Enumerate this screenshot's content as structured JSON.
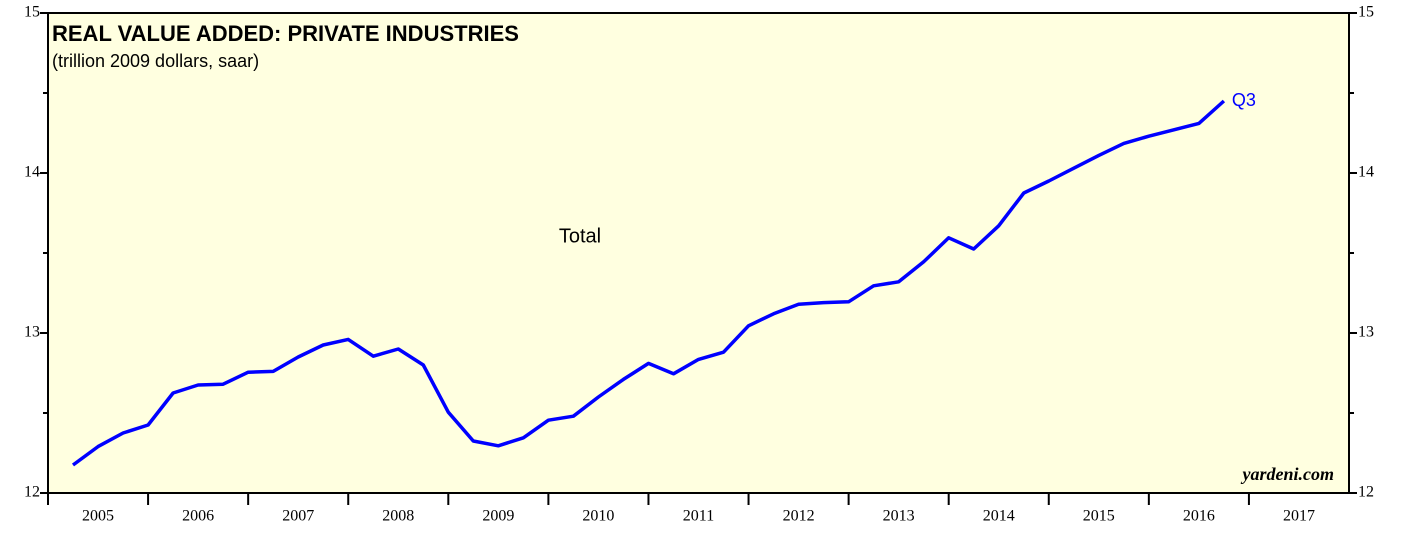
{
  "chart_data": {
    "type": "line",
    "title": "REAL VALUE ADDED: PRIVATE INDUSTRIES",
    "subtitle": "(trillion 2009 dollars, saar)",
    "annotations": {
      "series_label": "Total",
      "last_point": "Q3",
      "source": "yardeni.com"
    },
    "x": [
      2005.25,
      2005.5,
      2005.75,
      2006,
      2006.25,
      2006.5,
      2006.75,
      2007,
      2007.25,
      2007.5,
      2007.75,
      2008,
      2008.25,
      2008.5,
      2008.75,
      2009,
      2009.25,
      2009.5,
      2009.75,
      2010,
      2010.25,
      2010.5,
      2010.75,
      2011,
      2011.25,
      2011.5,
      2011.75,
      2012,
      2012.25,
      2012.5,
      2012.75,
      2013,
      2013.25,
      2013.5,
      2013.75,
      2014,
      2014.25,
      2014.5,
      2014.75,
      2015,
      2015.25,
      2015.5,
      2015.75,
      2016,
      2016.25,
      2016.5,
      2016.75
    ],
    "series": [
      {
        "name": "Total",
        "color": "#0000ff",
        "values": [
          12.175,
          12.29,
          12.375,
          12.425,
          12.625,
          12.675,
          12.68,
          12.755,
          12.76,
          12.85,
          12.925,
          12.96,
          12.855,
          12.9,
          12.8,
          12.505,
          12.325,
          12.295,
          12.345,
          12.455,
          12.48,
          12.6,
          12.71,
          12.81,
          12.745,
          12.835,
          12.88,
          13.045,
          13.12,
          13.18,
          13.19,
          13.195,
          13.295,
          13.32,
          13.445,
          13.595,
          13.525,
          13.67,
          13.875,
          13.95,
          14.03,
          14.11,
          14.185,
          14.23,
          14.27,
          14.31,
          14.45
        ]
      }
    ],
    "xlim": [
      2005,
      2018
    ],
    "xticks": [
      {
        "value": 2005.5,
        "label": "2005"
      },
      {
        "value": 2006.5,
        "label": "2006"
      },
      {
        "value": 2007.5,
        "label": "2007"
      },
      {
        "value": 2008.5,
        "label": "2008"
      },
      {
        "value": 2009.5,
        "label": "2009"
      },
      {
        "value": 2010.5,
        "label": "2010"
      },
      {
        "value": 2011.5,
        "label": "2011"
      },
      {
        "value": 2012.5,
        "label": "2012"
      },
      {
        "value": 2013.5,
        "label": "2013"
      },
      {
        "value": 2014.5,
        "label": "2014"
      },
      {
        "value": 2015.5,
        "label": "2015"
      },
      {
        "value": 2016.5,
        "label": "2016"
      },
      {
        "value": 2017.5,
        "label": "2017"
      }
    ],
    "ylim": [
      12,
      15
    ],
    "yticks": [
      12,
      13,
      14,
      15
    ],
    "yminor": [
      12.5,
      13.5,
      14.5
    ],
    "y2lim": [
      12,
      15
    ],
    "y2ticks": [
      12,
      13,
      14,
      15
    ],
    "background": "#ffffe0"
  }
}
